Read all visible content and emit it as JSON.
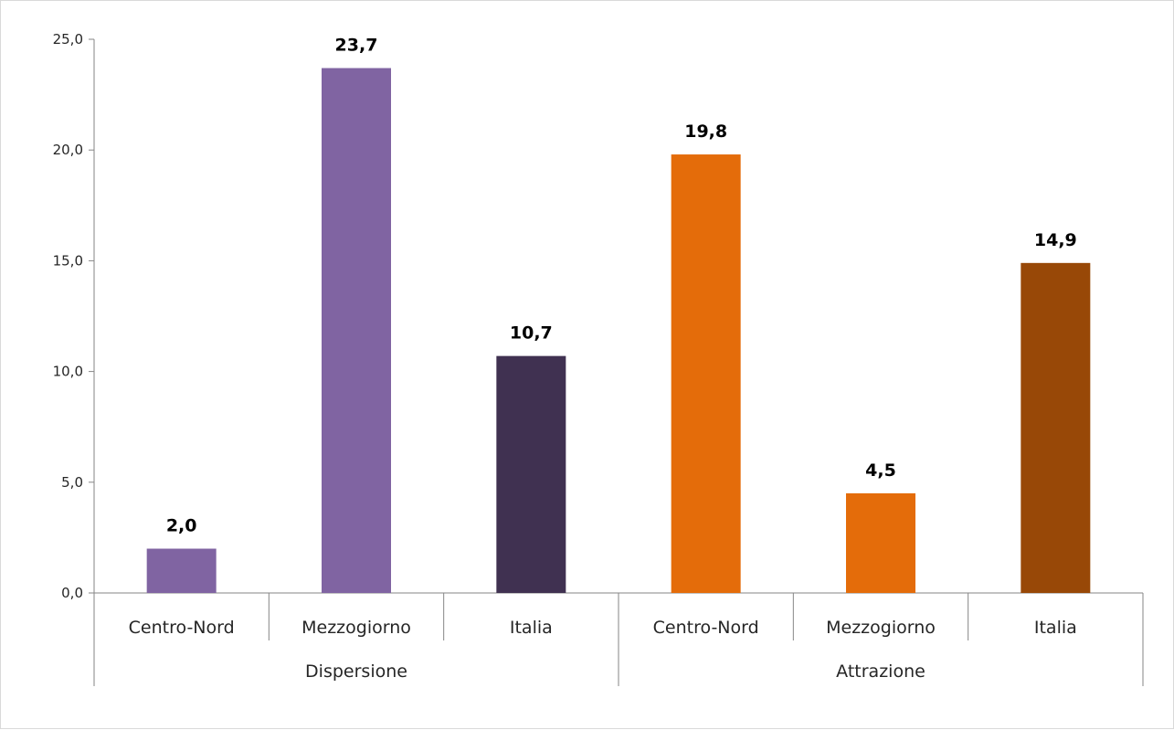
{
  "chart_data": {
    "type": "bar",
    "title": "",
    "xlabel": "",
    "ylabel": "",
    "ylim": [
      0,
      25
    ],
    "yticks": [
      "0,0",
      "5,0",
      "10,0",
      "15,0",
      "20,0",
      "25,0"
    ],
    "grid": false,
    "legend": "none",
    "groups": [
      {
        "label": "Dispersione",
        "categories": [
          "Centro-Nord",
          "Mezzogiorno",
          "Italia"
        ]
      },
      {
        "label": "Attrazione",
        "categories": [
          "Centro-Nord",
          "Mezzogiorno",
          "Italia"
        ]
      }
    ],
    "bars": [
      {
        "group": "Dispersione",
        "category": "Centro-Nord",
        "value": 2.0,
        "label": "2,0",
        "color": "#8064a2"
      },
      {
        "group": "Dispersione",
        "category": "Mezzogiorno",
        "value": 23.7,
        "label": "23,7",
        "color": "#8064a2"
      },
      {
        "group": "Dispersione",
        "category": "Italia",
        "value": 10.7,
        "label": "10,7",
        "color": "#403151"
      },
      {
        "group": "Attrazione",
        "category": "Centro-Nord",
        "value": 19.8,
        "label": "19,8",
        "color": "#e46c0a"
      },
      {
        "group": "Attrazione",
        "category": "Mezzogiorno",
        "value": 4.5,
        "label": "4,5",
        "color": "#e46c0a"
      },
      {
        "group": "Attrazione",
        "category": "Italia",
        "value": 14.9,
        "label": "14,9",
        "color": "#984807"
      }
    ],
    "colors": {
      "axis": "#868686",
      "text": "#262626"
    }
  }
}
